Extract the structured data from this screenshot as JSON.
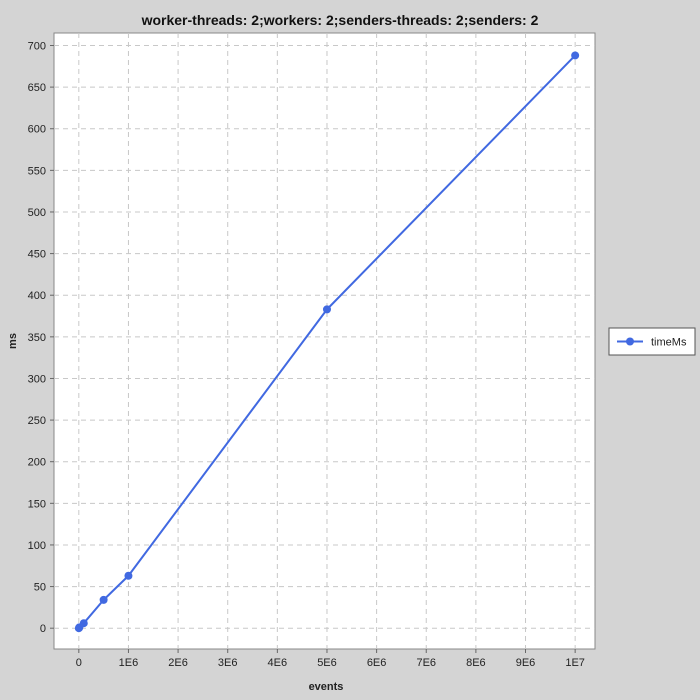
{
  "chart_data": {
    "type": "line",
    "title": "worker-threads: 2;workers: 2;senders-threads: 2;senders: 2",
    "xlabel": "events",
    "ylabel": "ms",
    "x_ticks": [
      {
        "value": 0,
        "label": "0"
      },
      {
        "value": 1000000,
        "label": "1E6"
      },
      {
        "value": 2000000,
        "label": "2E6"
      },
      {
        "value": 3000000,
        "label": "3E6"
      },
      {
        "value": 4000000,
        "label": "4E6"
      },
      {
        "value": 5000000,
        "label": "5E6"
      },
      {
        "value": 6000000,
        "label": "6E6"
      },
      {
        "value": 7000000,
        "label": "7E6"
      },
      {
        "value": 8000000,
        "label": "8E6"
      },
      {
        "value": 9000000,
        "label": "9E6"
      },
      {
        "value": 10000000,
        "label": "1E7"
      }
    ],
    "y_ticks": [
      0,
      50,
      100,
      150,
      200,
      250,
      300,
      350,
      400,
      450,
      500,
      550,
      600,
      650,
      700
    ],
    "xlim": [
      -500000,
      10400000
    ],
    "ylim": [
      -25,
      715
    ],
    "grid": true,
    "legend_position": "right",
    "series": [
      {
        "name": "timeMs",
        "color": "#4169e1",
        "x": [
          1000,
          10000,
          100000,
          500000,
          1000000,
          5000000,
          10000000
        ],
        "y": [
          0,
          1,
          6,
          34,
          63,
          383,
          688
        ]
      }
    ]
  }
}
